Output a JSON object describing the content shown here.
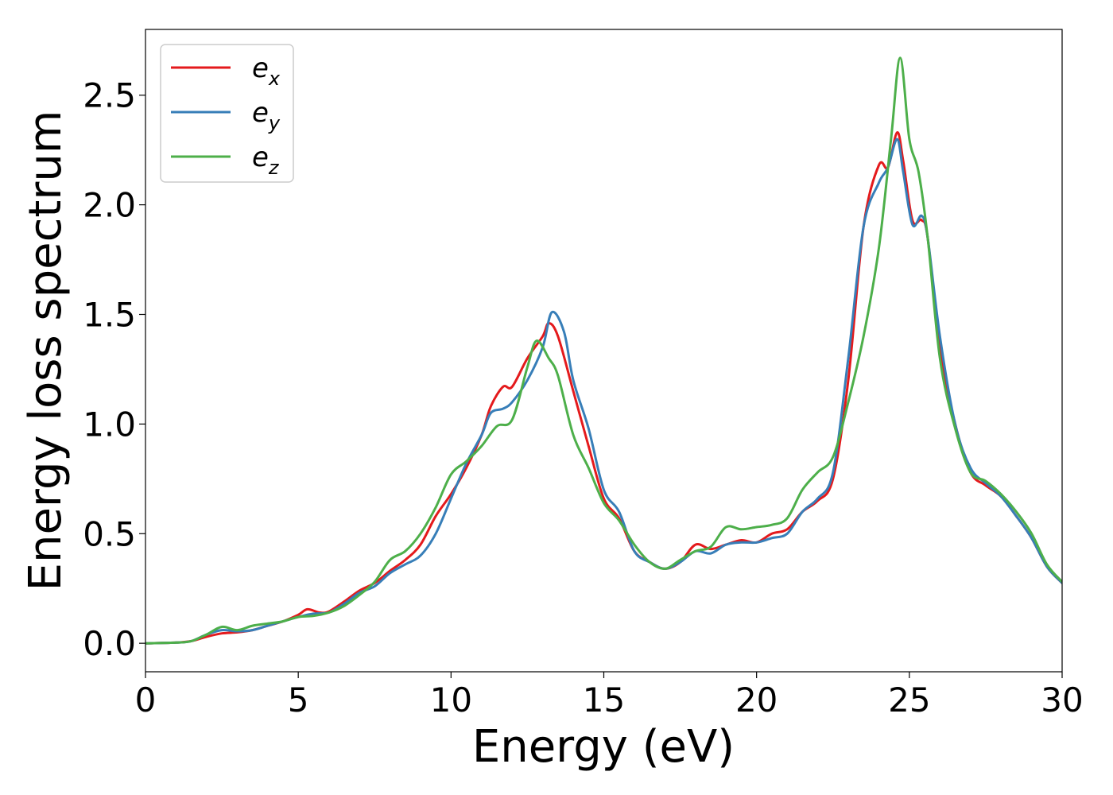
{
  "chart_data": {
    "type": "line",
    "xlabel": "Energy (eV)",
    "ylabel": "Energy loss spectrum",
    "xlim": [
      0,
      30
    ],
    "ylim": [
      -0.13,
      2.8
    ],
    "xticks": [
      0,
      5,
      10,
      15,
      20,
      25,
      30
    ],
    "xtick_labels": [
      "0",
      "5",
      "10",
      "15",
      "20",
      "25",
      "30"
    ],
    "yticks": [
      0.0,
      0.5,
      1.0,
      1.5,
      2.0,
      2.5
    ],
    "ytick_labels": [
      "0.0",
      "0.5",
      "1.0",
      "1.5",
      "2.0",
      "2.5"
    ],
    "grid": false,
    "legend_position": "top-left",
    "series": [
      {
        "name": "e",
        "subscript": "x",
        "color": "#e41a1c",
        "points": [
          [
            0,
            0
          ],
          [
            1,
            0.003
          ],
          [
            1.5,
            0.01
          ],
          [
            2,
            0.03
          ],
          [
            2.5,
            0.045
          ],
          [
            3,
            0.05
          ],
          [
            3.5,
            0.06
          ],
          [
            4,
            0.08
          ],
          [
            4.5,
            0.1
          ],
          [
            5,
            0.13
          ],
          [
            5.3,
            0.155
          ],
          [
            5.7,
            0.14
          ],
          [
            6,
            0.145
          ],
          [
            6.5,
            0.19
          ],
          [
            7,
            0.24
          ],
          [
            7.5,
            0.275
          ],
          [
            8,
            0.33
          ],
          [
            8.5,
            0.38
          ],
          [
            9,
            0.45
          ],
          [
            9.5,
            0.58
          ],
          [
            10,
            0.68
          ],
          [
            10.5,
            0.8
          ],
          [
            11,
            0.95
          ],
          [
            11.3,
            1.08
          ],
          [
            11.7,
            1.17
          ],
          [
            12,
            1.17
          ],
          [
            12.5,
            1.3
          ],
          [
            13,
            1.4
          ],
          [
            13.2,
            1.46
          ],
          [
            13.5,
            1.4
          ],
          [
            14,
            1.15
          ],
          [
            14.5,
            0.9
          ],
          [
            15,
            0.66
          ],
          [
            15.5,
            0.57
          ],
          [
            16,
            0.42
          ],
          [
            16.5,
            0.37
          ],
          [
            17,
            0.34
          ],
          [
            17.5,
            0.37
          ],
          [
            18,
            0.45
          ],
          [
            18.5,
            0.43
          ],
          [
            19,
            0.45
          ],
          [
            19.5,
            0.47
          ],
          [
            20,
            0.46
          ],
          [
            20.5,
            0.5
          ],
          [
            21,
            0.52
          ],
          [
            21.5,
            0.6
          ],
          [
            22,
            0.65
          ],
          [
            22.5,
            0.75
          ],
          [
            23,
            1.2
          ],
          [
            23.5,
            1.9
          ],
          [
            24,
            2.18
          ],
          [
            24.3,
            2.17
          ],
          [
            24.6,
            2.33
          ],
          [
            24.8,
            2.2
          ],
          [
            25.1,
            1.93
          ],
          [
            25.4,
            1.93
          ],
          [
            25.6,
            1.85
          ],
          [
            26,
            1.35
          ],
          [
            26.5,
            1.0
          ],
          [
            27,
            0.78
          ],
          [
            27.5,
            0.72
          ],
          [
            28,
            0.67
          ],
          [
            28.5,
            0.58
          ],
          [
            29,
            0.48
          ],
          [
            29.5,
            0.35
          ],
          [
            30,
            0.275
          ]
        ]
      },
      {
        "name": "e",
        "subscript": "y",
        "color": "#377eb8",
        "points": [
          [
            0,
            0
          ],
          [
            1,
            0.003
          ],
          [
            1.5,
            0.01
          ],
          [
            2,
            0.04
          ],
          [
            2.5,
            0.06
          ],
          [
            3,
            0.055
          ],
          [
            3.5,
            0.06
          ],
          [
            4,
            0.08
          ],
          [
            4.5,
            0.1
          ],
          [
            5,
            0.12
          ],
          [
            5.5,
            0.135
          ],
          [
            6,
            0.14
          ],
          [
            6.5,
            0.18
          ],
          [
            7,
            0.23
          ],
          [
            7.5,
            0.26
          ],
          [
            8,
            0.32
          ],
          [
            8.5,
            0.36
          ],
          [
            9,
            0.4
          ],
          [
            9.5,
            0.5
          ],
          [
            10,
            0.66
          ],
          [
            10.5,
            0.82
          ],
          [
            11,
            0.95
          ],
          [
            11.3,
            1.05
          ],
          [
            11.7,
            1.07
          ],
          [
            12,
            1.1
          ],
          [
            12.5,
            1.2
          ],
          [
            13,
            1.35
          ],
          [
            13.3,
            1.51
          ],
          [
            13.7,
            1.42
          ],
          [
            14,
            1.2
          ],
          [
            14.5,
            0.98
          ],
          [
            15,
            0.7
          ],
          [
            15.5,
            0.6
          ],
          [
            16,
            0.42
          ],
          [
            16.5,
            0.37
          ],
          [
            17,
            0.34
          ],
          [
            17.5,
            0.37
          ],
          [
            18,
            0.42
          ],
          [
            18.5,
            0.41
          ],
          [
            19,
            0.45
          ],
          [
            19.5,
            0.46
          ],
          [
            20,
            0.46
          ],
          [
            20.5,
            0.48
          ],
          [
            21,
            0.5
          ],
          [
            21.5,
            0.6
          ],
          [
            22,
            0.66
          ],
          [
            22.5,
            0.78
          ],
          [
            23,
            1.3
          ],
          [
            23.5,
            1.9
          ],
          [
            24,
            2.1
          ],
          [
            24.3,
            2.17
          ],
          [
            24.6,
            2.3
          ],
          [
            24.8,
            2.15
          ],
          [
            25.1,
            1.91
          ],
          [
            25.4,
            1.95
          ],
          [
            25.6,
            1.85
          ],
          [
            26,
            1.4
          ],
          [
            26.5,
            1.0
          ],
          [
            27,
            0.8
          ],
          [
            27.5,
            0.73
          ],
          [
            28,
            0.67
          ],
          [
            28.5,
            0.58
          ],
          [
            29,
            0.48
          ],
          [
            29.5,
            0.35
          ],
          [
            30,
            0.275
          ]
        ]
      },
      {
        "name": "e",
        "subscript": "z",
        "color": "#4daf4a",
        "points": [
          [
            0,
            0
          ],
          [
            1,
            0.003
          ],
          [
            1.5,
            0.01
          ],
          [
            2,
            0.04
          ],
          [
            2.5,
            0.075
          ],
          [
            3,
            0.06
          ],
          [
            3.5,
            0.08
          ],
          [
            4,
            0.09
          ],
          [
            4.5,
            0.1
          ],
          [
            5,
            0.12
          ],
          [
            5.5,
            0.125
          ],
          [
            6,
            0.14
          ],
          [
            6.5,
            0.17
          ],
          [
            7,
            0.22
          ],
          [
            7.5,
            0.28
          ],
          [
            8,
            0.38
          ],
          [
            8.5,
            0.42
          ],
          [
            9,
            0.5
          ],
          [
            9.5,
            0.62
          ],
          [
            10,
            0.77
          ],
          [
            10.5,
            0.83
          ],
          [
            11,
            0.9
          ],
          [
            11.5,
            0.99
          ],
          [
            12,
            1.02
          ],
          [
            12.5,
            1.26
          ],
          [
            12.8,
            1.38
          ],
          [
            13.2,
            1.3
          ],
          [
            13.5,
            1.22
          ],
          [
            14,
            0.95
          ],
          [
            14.5,
            0.8
          ],
          [
            15,
            0.64
          ],
          [
            15.5,
            0.56
          ],
          [
            16,
            0.45
          ],
          [
            16.5,
            0.37
          ],
          [
            17,
            0.34
          ],
          [
            17.5,
            0.38
          ],
          [
            18,
            0.42
          ],
          [
            18.5,
            0.44
          ],
          [
            19,
            0.53
          ],
          [
            19.5,
            0.52
          ],
          [
            20,
            0.53
          ],
          [
            20.5,
            0.54
          ],
          [
            21,
            0.57
          ],
          [
            21.5,
            0.7
          ],
          [
            22,
            0.78
          ],
          [
            22.5,
            0.85
          ],
          [
            23,
            1.1
          ],
          [
            23.5,
            1.4
          ],
          [
            24,
            1.8
          ],
          [
            24.4,
            2.3
          ],
          [
            24.7,
            2.67
          ],
          [
            25,
            2.3
          ],
          [
            25.3,
            2.15
          ],
          [
            25.6,
            1.85
          ],
          [
            26,
            1.3
          ],
          [
            26.5,
            0.98
          ],
          [
            27,
            0.78
          ],
          [
            27.5,
            0.74
          ],
          [
            28,
            0.68
          ],
          [
            28.5,
            0.6
          ],
          [
            29,
            0.5
          ],
          [
            29.5,
            0.36
          ],
          [
            30,
            0.28
          ]
        ]
      }
    ]
  }
}
